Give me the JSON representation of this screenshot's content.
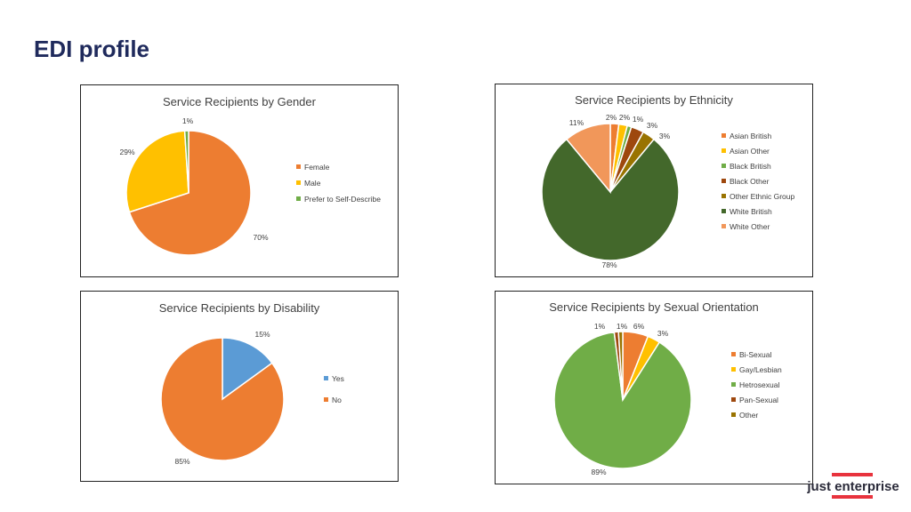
{
  "page": {
    "title": "EDI profile"
  },
  "logo": {
    "text": "just enterprise"
  },
  "chart_data": [
    {
      "type": "pie",
      "title": "Service Recipients by Gender",
      "categories": [
        "Female",
        "Male",
        "Prefer to Self-Describe"
      ],
      "values": [
        70,
        29,
        1
      ],
      "labels": [
        "70%",
        "29%",
        "1%"
      ],
      "colors": [
        "#ED7D31",
        "#FFC000",
        "#70AD47"
      ],
      "legend": "right"
    },
    {
      "type": "pie",
      "title": "Service Recipients by Ethnicity",
      "categories": [
        "Asian British",
        "Asian Other",
        "Black British",
        "Black Other",
        "Other Ethnic Group",
        "White British",
        "White Other"
      ],
      "values": [
        2,
        2,
        1,
        3,
        3,
        78,
        11
      ],
      "labels": [
        "2%",
        "2%",
        "1%",
        "3%",
        "3%",
        "78%",
        "11%"
      ],
      "colors": [
        "#ED7D31",
        "#FFC000",
        "#70AD47",
        "#9E480E",
        "#997300",
        "#43682B",
        "#F1975A"
      ],
      "legend": "right"
    },
    {
      "type": "pie",
      "title": "Service Recipients by Disability",
      "categories": [
        "Yes",
        "No"
      ],
      "values": [
        15,
        85
      ],
      "labels": [
        "15%",
        "85%"
      ],
      "colors": [
        "#5B9BD5",
        "#ED7D31"
      ],
      "legend": "right"
    },
    {
      "type": "pie",
      "title": "Service Recipients by Sexual Orientation",
      "categories": [
        "Bi-Sexual",
        "Gay/Lesbian",
        "Hetrosexual",
        "Pan-Sexual",
        "Other"
      ],
      "values": [
        6,
        3,
        89,
        1,
        1
      ],
      "labels": [
        "6%",
        "3%",
        "89%",
        "1%",
        "1%"
      ],
      "colors": [
        "#ED7D31",
        "#FFC000",
        "#70AD47",
        "#9E480E",
        "#997300"
      ],
      "legend": "right"
    }
  ]
}
